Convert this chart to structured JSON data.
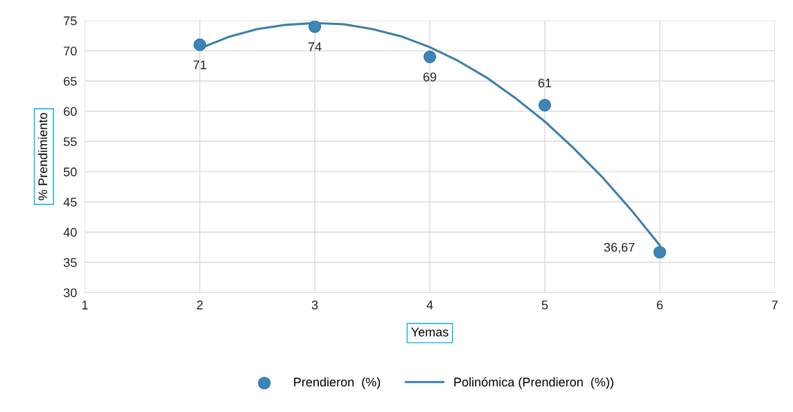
{
  "chart_data": {
    "type": "scatter",
    "xlabel": "Yemas",
    "ylabel": "% Prendimiento",
    "xlim": [
      1,
      7
    ],
    "xticks": [
      1,
      2,
      3,
      4,
      5,
      6,
      7
    ],
    "ylim": [
      30,
      75
    ],
    "yticks": [
      30,
      35,
      40,
      45,
      50,
      55,
      60,
      65,
      70,
      75
    ],
    "grid": true,
    "legend": "bottom",
    "series": [
      {
        "name": "Prendieron  (%)",
        "marker": "circle",
        "color": "#3c85b8",
        "x": [
          2,
          3,
          4,
          5,
          6
        ],
        "values": [
          71,
          74,
          69,
          61,
          36.67
        ],
        "value_labels": [
          "71",
          "74",
          "69",
          "61",
          "36,67"
        ]
      },
      {
        "name": "Polinómica (Prendieron  (%))",
        "type": "line",
        "color": "#3a7fad",
        "line_style": "solid",
        "x": [
          2,
          2.25,
          2.5,
          2.75,
          3,
          3.25,
          3.5,
          3.75,
          4,
          4.25,
          4.5,
          4.75,
          5,
          5.25,
          5.5,
          5.75,
          6
        ],
        "values": [
          70.4,
          72.3,
          73.6,
          74.3,
          74.6,
          74.4,
          73.6,
          72.4,
          70.6,
          68.3,
          65.5,
          62.1,
          58.3,
          53.9,
          49.1,
          43.7,
          37.8
        ]
      }
    ]
  }
}
